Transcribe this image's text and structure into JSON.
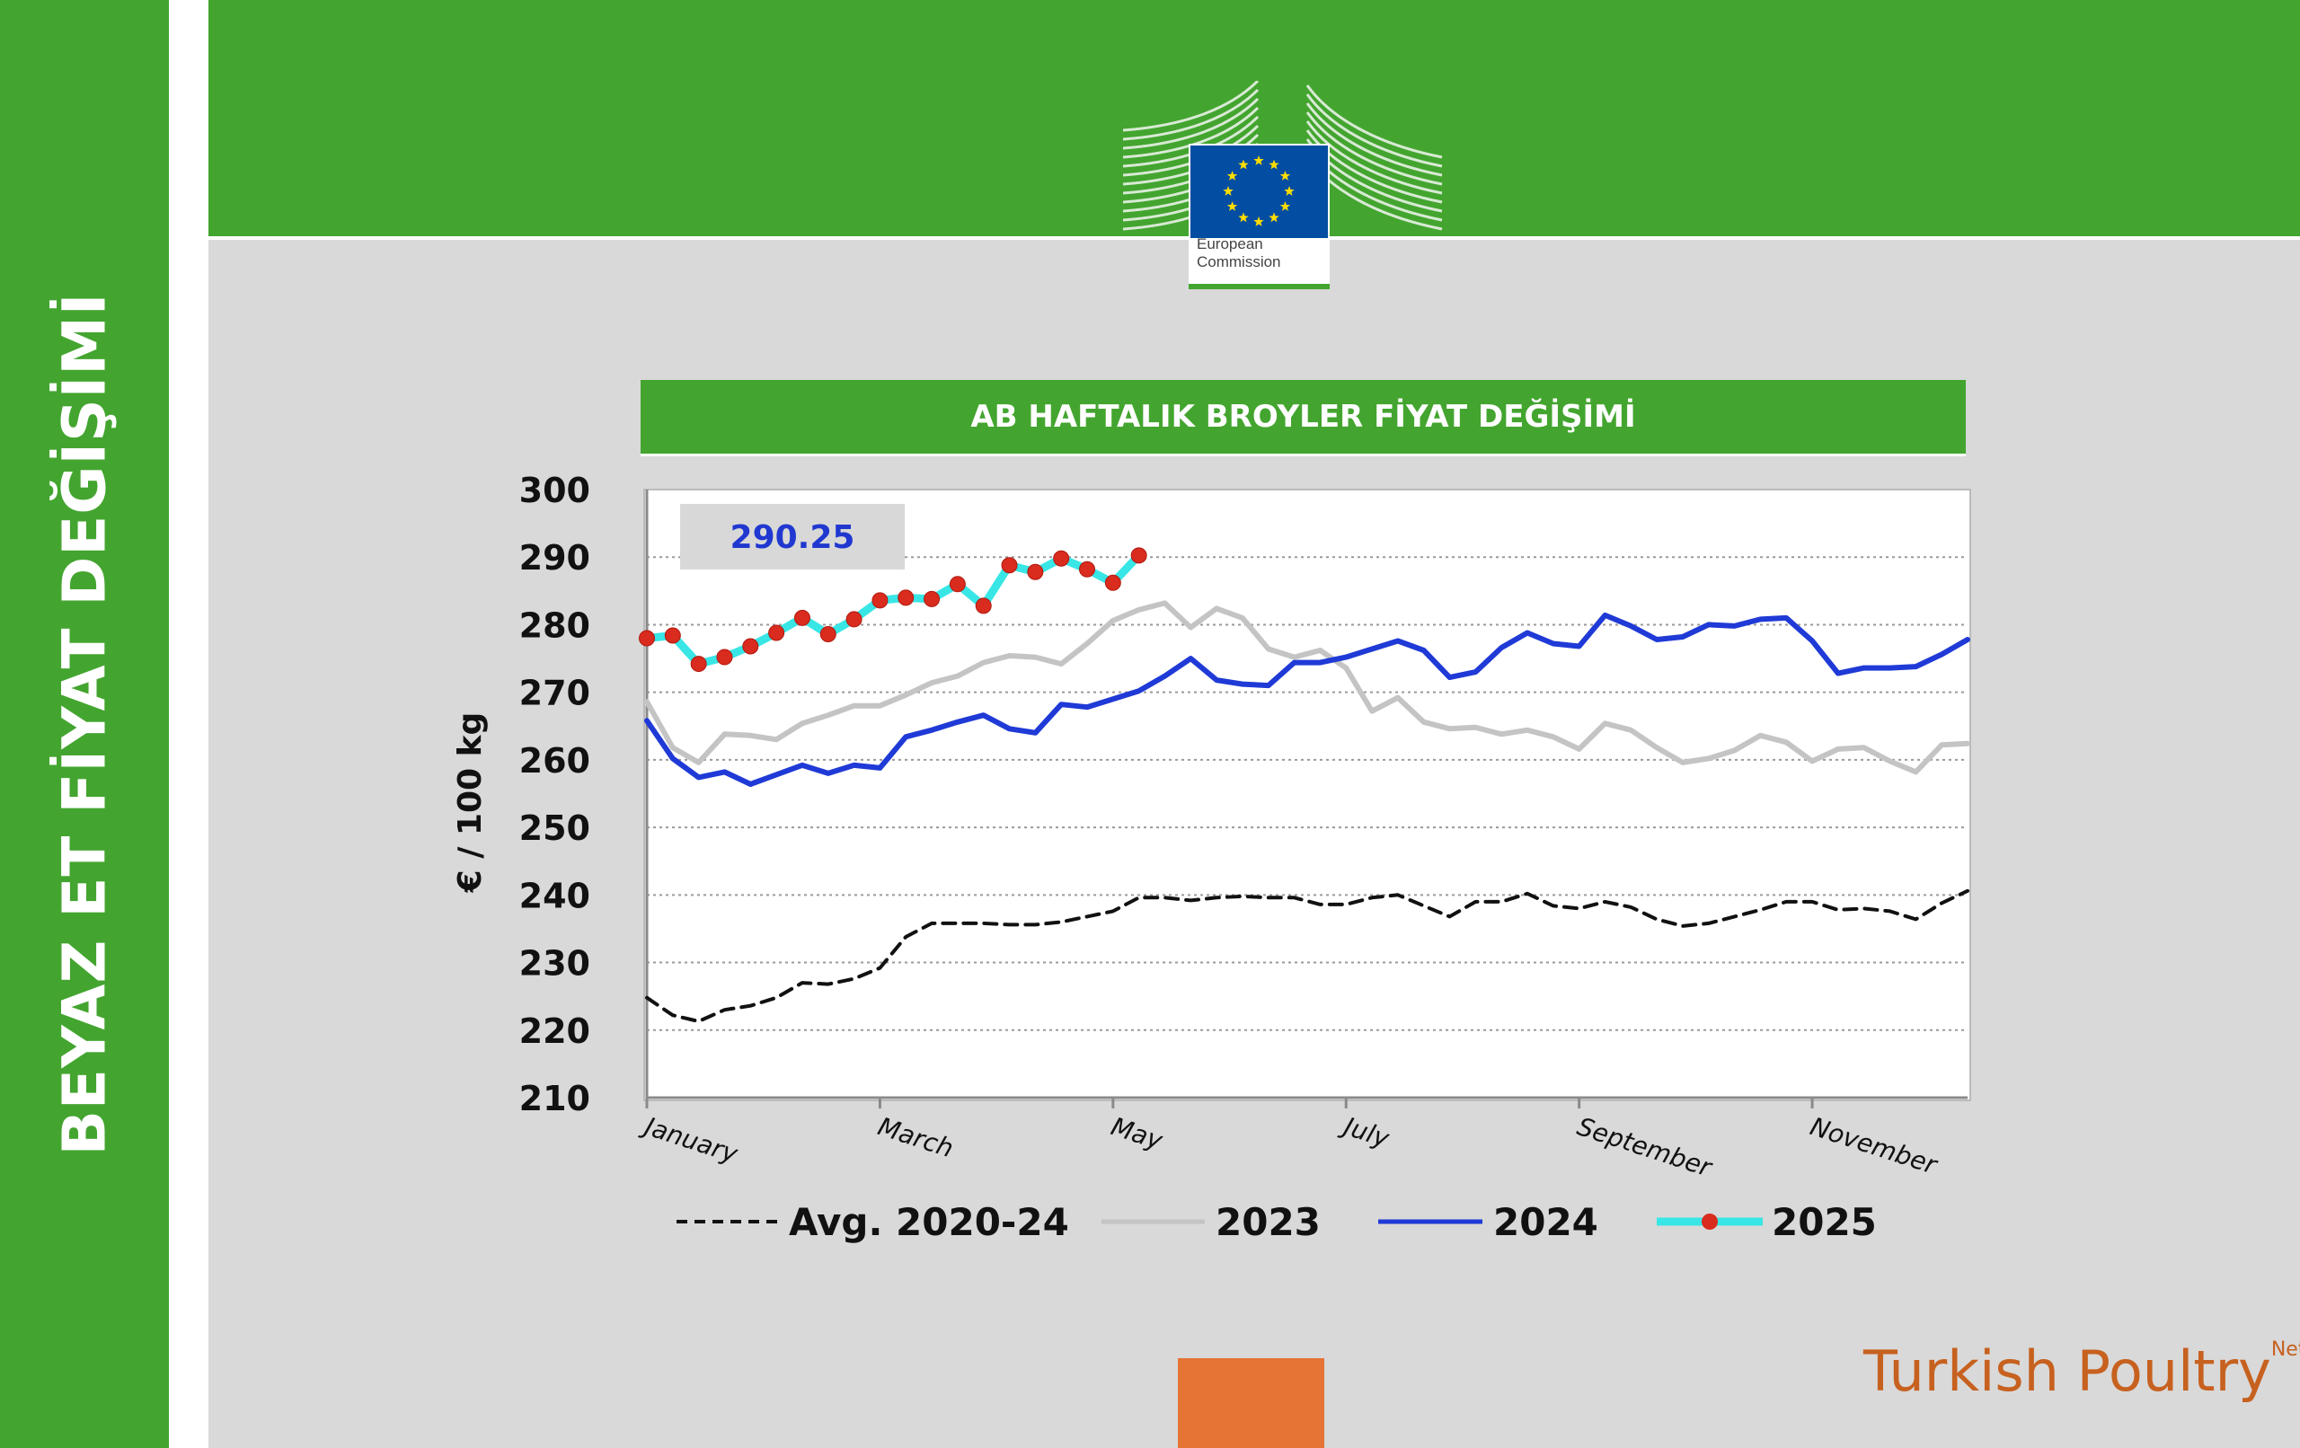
{
  "side_title": "BEYAZ ET FİYAT DEĞİŞİMİ",
  "logo": {
    "line1": "European",
    "line2": "Commission"
  },
  "chart_title": "AB HAFTALIK BROYLER FİYAT DEĞİŞİMİ",
  "brand": {
    "name": "Turkish Poultry",
    "suffix": "Net"
  },
  "chart_data": {
    "type": "line",
    "ylabel": "€ / 100 kg",
    "xlabel": "",
    "ylim": [
      210,
      300
    ],
    "yticks": [
      210,
      220,
      230,
      240,
      250,
      260,
      270,
      280,
      290,
      300
    ],
    "xlim": [
      1,
      52
    ],
    "month_labels": [
      {
        "label": "January",
        "week": 1
      },
      {
        "label": "March",
        "week": 10
      },
      {
        "label": "May",
        "week": 19
      },
      {
        "label": "July",
        "week": 28
      },
      {
        "label": "September",
        "week": 37
      },
      {
        "label": "November",
        "week": 46
      }
    ],
    "grid": "horizontal-dotted",
    "legend_position": "bottom",
    "annotation": "290.25",
    "series": [
      {
        "name": "Avg. 2020-24",
        "color": "#111111",
        "style": "dashed",
        "values": [
          224.8,
          222.2,
          221.3,
          223,
          223.6,
          224.8,
          227,
          226.8,
          227.6,
          229.2,
          233.8,
          235.8,
          235.8,
          235.8,
          235.6,
          235.6,
          236,
          236.8,
          237.6,
          239.6,
          239.6,
          239.2,
          239.6,
          239.8,
          239.6,
          239.6,
          238.6,
          238.6,
          239.6,
          240,
          238.4,
          236.8,
          239,
          239,
          240.2,
          238.4,
          238,
          239,
          238.2,
          236.4,
          235.4,
          235.8,
          236.8,
          237.8,
          239,
          239,
          237.8,
          238,
          237.6,
          236.4,
          238.8,
          240.6
        ]
      },
      {
        "name": "2023",
        "color": "#c4c4c4",
        "style": "solid",
        "values": [
          268.6,
          261.8,
          259.6,
          263.8,
          263.6,
          263,
          265.4,
          266.6,
          268,
          268,
          269.6,
          271.4,
          272.4,
          274.4,
          275.4,
          275.2,
          274.2,
          277.2,
          280.6,
          282.2,
          283.2,
          279.6,
          282.4,
          281,
          276.4,
          275.2,
          276.2,
          273.6,
          267.2,
          269.2,
          265.6,
          264.6,
          264.8,
          263.8,
          264.4,
          263.4,
          261.6,
          265.4,
          264.4,
          261.8,
          259.6,
          260.2,
          261.4,
          263.6,
          262.6,
          259.8,
          261.6,
          261.8,
          259.8,
          258.2,
          262.2,
          262.4
        ]
      },
      {
        "name": "2024",
        "color": "#1f3ad6",
        "style": "solid",
        "values": [
          265.8,
          260.2,
          257.4,
          258.2,
          256.4,
          257.8,
          259.2,
          258,
          259.2,
          258.8,
          263.4,
          264.4,
          265.6,
          266.6,
          264.6,
          264,
          268.2,
          267.8,
          269,
          270.2,
          272.4,
          275,
          271.8,
          271.2,
          271,
          274.4,
          274.4,
          275.2,
          276.4,
          277.6,
          276.2,
          272.2,
          273,
          276.6,
          278.8,
          277.2,
          276.8,
          281.4,
          279.8,
          277.8,
          278.2,
          280,
          279.8,
          280.8,
          281,
          277.6,
          272.8,
          273.6,
          273.6,
          273.8,
          275.6,
          277.8
        ]
      },
      {
        "name": "2025",
        "color": "#39e6e6",
        "marker_color": "#d92b1e",
        "style": "solid-markers",
        "values": [
          278,
          278.4,
          274.2,
          275.2,
          276.8,
          278.8,
          281,
          278.6,
          280.8,
          283.6,
          284,
          283.8,
          286,
          282.8,
          288.8,
          287.8,
          289.8,
          288.2,
          286.2,
          290.25
        ]
      }
    ]
  }
}
